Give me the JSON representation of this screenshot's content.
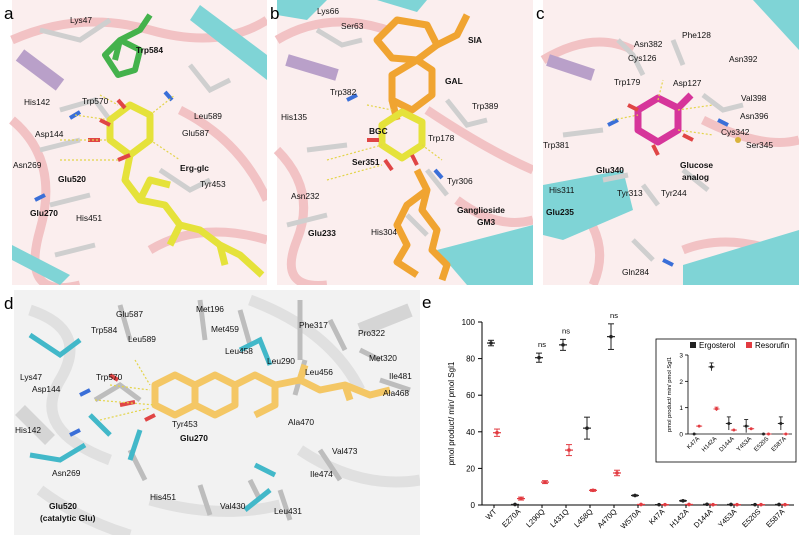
{
  "panels": {
    "a": {
      "letter": "a",
      "labels": [
        "Lys47",
        "Trp584",
        "His142",
        "Trp570",
        "Leu589",
        "Glu587",
        "Asp144",
        "Erg-glc",
        "Asn269",
        "Glu520",
        "Tyr453",
        "Glu270",
        "His451"
      ]
    },
    "b": {
      "letter": "b",
      "labels": [
        "Lys66",
        "Ser63",
        "SIA",
        "GAL",
        "Trp382",
        "His135",
        "Trp389",
        "BGC",
        "Trp178",
        "Ser351",
        "Asn232",
        "Tyr306",
        "Ganglioside",
        "GM3",
        "Glu233",
        "His304"
      ]
    },
    "c": {
      "letter": "c",
      "labels": [
        "Phe128",
        "Asn382",
        "Asn392",
        "Cys126",
        "Asp127",
        "Trp179",
        "Val398",
        "Asn396",
        "Cys342",
        "Trp381",
        "Ser345",
        "Glu340",
        "Glucose",
        "analog",
        "His311",
        "Tyr313",
        "Tyr244",
        "Glu235",
        "Gln284"
      ]
    },
    "d": {
      "letter": "d",
      "labels": [
        "Met196",
        "Glu587",
        "Phe317",
        "Trp584",
        "Met459",
        "Pro322",
        "Leu589",
        "Met320",
        "Leu458",
        "Leu290",
        "Leu456",
        "Lys47",
        "Trp570",
        "Ile481",
        "Asp144",
        "Ala468",
        "His142",
        "Tyr453",
        "Glu270",
        "Ala470",
        "Val473",
        "Asn269",
        "Ile474",
        "Glu520",
        "(catalytic Glu)",
        "His451",
        "Val430",
        "Leu431"
      ]
    }
  },
  "chart_data": {
    "panel_letter": "e",
    "type": "scatter",
    "ylabel": "pmol product/ min/ pmol Sgl1",
    "ylim": [
      0,
      100
    ],
    "yticks": [
      0,
      20,
      40,
      60,
      80,
      100
    ],
    "categories": [
      "WT",
      "E270A",
      "L290Q",
      "L431Q",
      "L458Q",
      "A470Q",
      "W570A",
      "K47A",
      "H142A",
      "D144A",
      "Y453A",
      "E520S",
      "E587A"
    ],
    "series": [
      {
        "name": "Ergosterol",
        "color": "#222222",
        "values": [
          88.5,
          0.3,
          80.5,
          87.5,
          42,
          92,
          5.2,
          0.2,
          2.3,
          0.4,
          0.3,
          0.2,
          0.3
        ],
        "errors": [
          1.5,
          0,
          2.5,
          3,
          6,
          7,
          0.3,
          0,
          0.3,
          0,
          0,
          0,
          0
        ]
      },
      {
        "name": "Resorufin",
        "color": "#e23b41",
        "values": [
          39.5,
          3.5,
          12.5,
          30,
          8,
          17.5,
          0.3,
          0.2,
          0.3,
          0.2,
          0.2,
          0.2,
          0.2
        ],
        "errors": [
          2,
          0.8,
          0.8,
          3,
          0.5,
          1.5,
          0,
          0,
          0,
          0,
          0,
          0,
          0
        ]
      }
    ],
    "ns_labels": [
      "ns",
      "ns",
      "ns"
    ],
    "ns_categories": [
      "L290Q",
      "L431Q",
      "A470Q"
    ],
    "inset": {
      "ylabel": "pmol product/ min/ pmol Sgl1",
      "ylim": [
        0,
        3
      ],
      "yticks": [
        0,
        1,
        2,
        3
      ],
      "categories": [
        "K47A",
        "H142A",
        "D144A",
        "Y453A",
        "E520S",
        "E587A"
      ],
      "legend": [
        "Ergosterol",
        "Resorufin"
      ],
      "series": [
        {
          "name": "Ergosterol",
          "values": [
            0,
            2.55,
            0.4,
            0.3,
            0,
            0.4
          ],
          "errors": [
            0,
            0.15,
            0.25,
            0.25,
            0,
            0.25
          ]
        },
        {
          "name": "Resorufin",
          "values": [
            0.3,
            0.95,
            0.15,
            0.2,
            0,
            0
          ],
          "errors": [
            0,
            0.07,
            0,
            0,
            0,
            0
          ]
        }
      ]
    }
  }
}
